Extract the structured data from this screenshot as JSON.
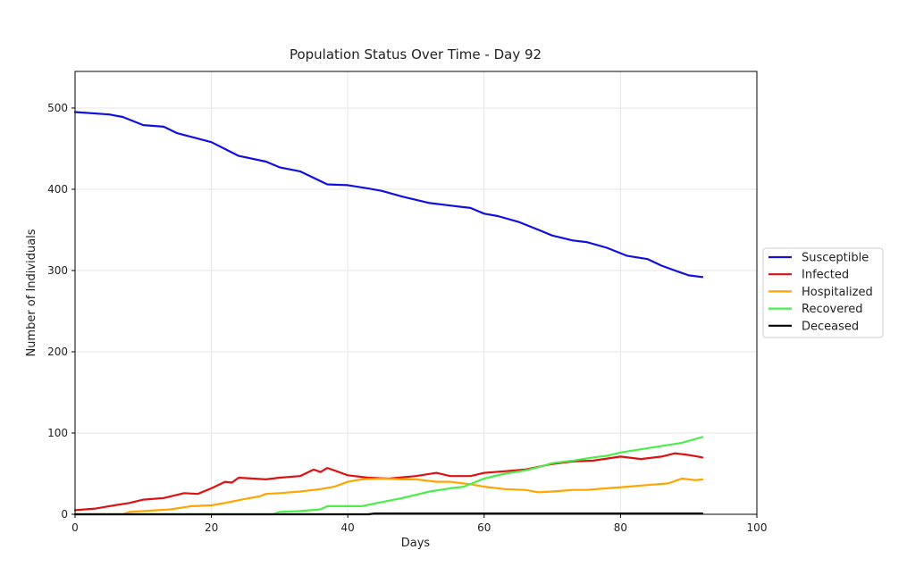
{
  "chart_data": {
    "type": "line",
    "title": "Population Status Over Time - Day 92",
    "xlabel": "Days",
    "ylabel": "Number of Individuals",
    "xlim": [
      0,
      100
    ],
    "ylim": [
      0,
      545
    ],
    "xticks": [
      0,
      20,
      40,
      60,
      80,
      100
    ],
    "yticks": [
      0,
      100,
      200,
      300,
      400,
      500
    ],
    "grid": true,
    "legend_position": "right, outside plot",
    "series": [
      {
        "name": "Susceptible",
        "color": "#1010e0",
        "points": [
          [
            0,
            495
          ],
          [
            5,
            492
          ],
          [
            7,
            489
          ],
          [
            10,
            479
          ],
          [
            13,
            477
          ],
          [
            15,
            469
          ],
          [
            20,
            458
          ],
          [
            24,
            441
          ],
          [
            28,
            434
          ],
          [
            30,
            427
          ],
          [
            33,
            422
          ],
          [
            35,
            414
          ],
          [
            37,
            406
          ],
          [
            40,
            405
          ],
          [
            43,
            401
          ],
          [
            45,
            398
          ],
          [
            48,
            391
          ],
          [
            52,
            383
          ],
          [
            55,
            380
          ],
          [
            58,
            377
          ],
          [
            60,
            370
          ],
          [
            62,
            367
          ],
          [
            65,
            360
          ],
          [
            68,
            350
          ],
          [
            70,
            343
          ],
          [
            73,
            337
          ],
          [
            75,
            335
          ],
          [
            78,
            328
          ],
          [
            81,
            318
          ],
          [
            84,
            314
          ],
          [
            86,
            306
          ],
          [
            88,
            300
          ],
          [
            90,
            294
          ],
          [
            92,
            292
          ]
        ]
      },
      {
        "name": "Infected",
        "color": "#e01010",
        "points": [
          [
            0,
            5
          ],
          [
            3,
            7
          ],
          [
            5,
            10
          ],
          [
            8,
            14
          ],
          [
            10,
            18
          ],
          [
            13,
            20
          ],
          [
            16,
            26
          ],
          [
            18,
            25
          ],
          [
            20,
            32
          ],
          [
            22,
            40
          ],
          [
            23,
            39
          ],
          [
            24,
            45
          ],
          [
            28,
            43
          ],
          [
            30,
            45
          ],
          [
            33,
            47
          ],
          [
            35,
            55
          ],
          [
            36,
            52
          ],
          [
            37,
            57
          ],
          [
            40,
            48
          ],
          [
            43,
            45
          ],
          [
            46,
            44
          ],
          [
            50,
            47
          ],
          [
            53,
            51
          ],
          [
            55,
            47
          ],
          [
            58,
            47
          ],
          [
            60,
            51
          ],
          [
            63,
            53
          ],
          [
            66,
            55
          ],
          [
            70,
            62
          ],
          [
            73,
            65
          ],
          [
            76,
            66
          ],
          [
            80,
            71
          ],
          [
            83,
            68
          ],
          [
            86,
            71
          ],
          [
            88,
            75
          ],
          [
            90,
            73
          ],
          [
            92,
            70
          ]
        ]
      },
      {
        "name": "Hospitalized",
        "color": "#ffa500",
        "points": [
          [
            0,
            0
          ],
          [
            7,
            0
          ],
          [
            8,
            3
          ],
          [
            10,
            4
          ],
          [
            14,
            6
          ],
          [
            17,
            10
          ],
          [
            20,
            11
          ],
          [
            22,
            14
          ],
          [
            25,
            19
          ],
          [
            27,
            22
          ],
          [
            28,
            25
          ],
          [
            30,
            26
          ],
          [
            33,
            28
          ],
          [
            36,
            31
          ],
          [
            38,
            34
          ],
          [
            40,
            40
          ],
          [
            42,
            43
          ],
          [
            45,
            44
          ],
          [
            48,
            43
          ],
          [
            50,
            43
          ],
          [
            53,
            40
          ],
          [
            55,
            40
          ],
          [
            58,
            37
          ],
          [
            60,
            34
          ],
          [
            63,
            31
          ],
          [
            66,
            30
          ],
          [
            68,
            27
          ],
          [
            70,
            28
          ],
          [
            73,
            30
          ],
          [
            75,
            30
          ],
          [
            78,
            32
          ],
          [
            81,
            34
          ],
          [
            84,
            36
          ],
          [
            87,
            38
          ],
          [
            89,
            44
          ],
          [
            91,
            42
          ],
          [
            92,
            43
          ]
        ]
      },
      {
        "name": "Recovered",
        "color": "#4aee4a",
        "points": [
          [
            0,
            0
          ],
          [
            29,
            0
          ],
          [
            30,
            3
          ],
          [
            33,
            4
          ],
          [
            36,
            6
          ],
          [
            37,
            10
          ],
          [
            42,
            10
          ],
          [
            45,
            15
          ],
          [
            48,
            20
          ],
          [
            50,
            24
          ],
          [
            52,
            28
          ],
          [
            55,
            32
          ],
          [
            57,
            34
          ],
          [
            60,
            44
          ],
          [
            63,
            50
          ],
          [
            66,
            54
          ],
          [
            68,
            58
          ],
          [
            70,
            63
          ],
          [
            73,
            66
          ],
          [
            76,
            70
          ],
          [
            78,
            72
          ],
          [
            80,
            76
          ],
          [
            83,
            80
          ],
          [
            86,
            84
          ],
          [
            89,
            88
          ],
          [
            92,
            95
          ]
        ]
      },
      {
        "name": "Deceased",
        "color": "#000000",
        "points": [
          [
            0,
            0
          ],
          [
            43,
            0
          ],
          [
            44,
            1
          ],
          [
            92,
            1
          ]
        ]
      }
    ]
  }
}
